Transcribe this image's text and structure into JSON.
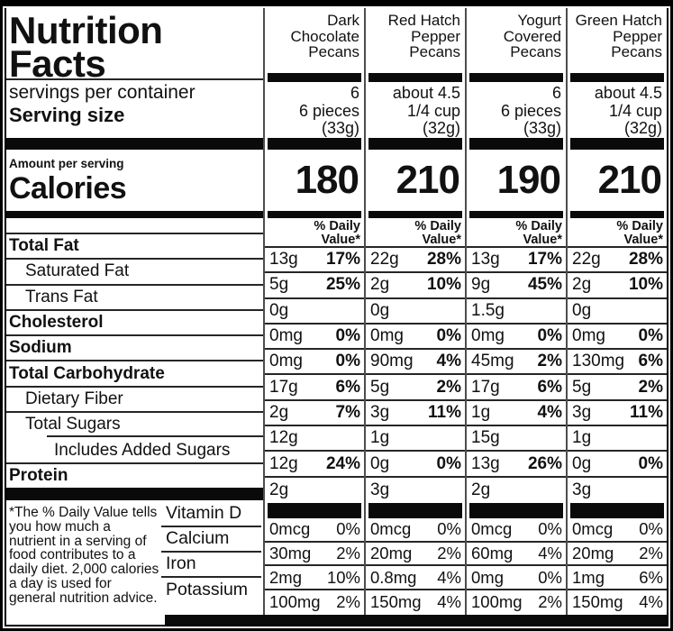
{
  "colors": {
    "ink": "#111111",
    "bar": "#0a0a0a",
    "rule": "#262626",
    "divider": "#4d4d4d"
  },
  "header": {
    "title": "Nutrition Facts",
    "servings_label": "servings per container",
    "serving_size_label": "Serving size",
    "amount_label": "Amount per serving",
    "calories_label": "Calories"
  },
  "dv_header_lines": [
    "% Daily",
    "Value*"
  ],
  "nutrients": [
    {
      "label": "Total Fat",
      "bold": true,
      "indent": 0
    },
    {
      "label": "Saturated Fat",
      "bold": false,
      "indent": 1
    },
    {
      "label": "Trans Fat",
      "bold": false,
      "indent": 1
    },
    {
      "label": "Cholesterol",
      "bold": true,
      "indent": 0
    },
    {
      "label": "Sodium",
      "bold": true,
      "indent": 0
    },
    {
      "label": "Total Carbohydrate",
      "bold": true,
      "indent": 0
    },
    {
      "label": "Dietary Fiber",
      "bold": false,
      "indent": 1
    },
    {
      "label": "Total Sugars",
      "bold": false,
      "indent": 1
    },
    {
      "label": "Includes Added Sugars",
      "bold": false,
      "indent": 2,
      "indented_rule": true
    },
    {
      "label": "Protein",
      "bold": true,
      "indent": 0
    }
  ],
  "vitamin_labels": [
    "Vitamin D",
    "Calcium",
    "Iron",
    "Potassium"
  ],
  "footnote": "*The % Daily Value tells you how much a nutrient in a serving of food contributes to a daily diet. 2,000 calories a day is used for general nutrition advice.",
  "products": [
    {
      "name_lines": [
        "Dark",
        "Chocolate",
        "Pecans"
      ],
      "servings": "6",
      "serving_size_lines": [
        "6 pieces",
        "(33g)"
      ],
      "calories": "180",
      "rows": [
        [
          "13g",
          "17%"
        ],
        [
          "5g",
          "25%"
        ],
        [
          "0g",
          ""
        ],
        [
          "0mg",
          "0%"
        ],
        [
          "0mg",
          "0%"
        ],
        [
          "17g",
          "6%"
        ],
        [
          "2g",
          "7%"
        ],
        [
          "12g",
          ""
        ],
        [
          "12g",
          "24%"
        ],
        [
          "2g",
          ""
        ]
      ],
      "vitamin_rows": [
        [
          "0mcg",
          "0%"
        ],
        [
          "30mg",
          "2%"
        ],
        [
          "2mg",
          "10%"
        ],
        [
          "100mg",
          "2%"
        ]
      ]
    },
    {
      "name_lines": [
        "Red Hatch",
        "Pepper",
        "Pecans"
      ],
      "servings": "about 4.5",
      "serving_size_lines": [
        "1/4 cup",
        "(32g)"
      ],
      "calories": "210",
      "rows": [
        [
          "22g",
          "28%"
        ],
        [
          "2g",
          "10%"
        ],
        [
          "0g",
          ""
        ],
        [
          "0mg",
          "0%"
        ],
        [
          "90mg",
          "4%"
        ],
        [
          "5g",
          "2%"
        ],
        [
          "3g",
          "11%"
        ],
        [
          "1g",
          ""
        ],
        [
          "0g",
          "0%"
        ],
        [
          "3g",
          ""
        ]
      ],
      "vitamin_rows": [
        [
          "0mcg",
          "0%"
        ],
        [
          "20mg",
          "2%"
        ],
        [
          "0.8mg",
          "4%"
        ],
        [
          "150mg",
          "4%"
        ]
      ]
    },
    {
      "name_lines": [
        "Yogurt",
        "Covered",
        "Pecans"
      ],
      "servings": "6",
      "serving_size_lines": [
        "6 pieces",
        "(33g)"
      ],
      "calories": "190",
      "rows": [
        [
          "13g",
          "17%"
        ],
        [
          "9g",
          "45%"
        ],
        [
          "1.5g",
          ""
        ],
        [
          "0mg",
          "0%"
        ],
        [
          "45mg",
          "2%"
        ],
        [
          "17g",
          "6%"
        ],
        [
          "1g",
          "4%"
        ],
        [
          "15g",
          ""
        ],
        [
          "13g",
          "26%"
        ],
        [
          "2g",
          ""
        ]
      ],
      "vitamin_rows": [
        [
          "0mcg",
          "0%"
        ],
        [
          "60mg",
          "4%"
        ],
        [
          "0mg",
          "0%"
        ],
        [
          "100mg",
          "2%"
        ]
      ]
    },
    {
      "name_lines": [
        "Green Hatch",
        "Pepper",
        "Pecans"
      ],
      "servings": "about 4.5",
      "serving_size_lines": [
        "1/4 cup",
        "(32g)"
      ],
      "calories": "210",
      "rows": [
        [
          "22g",
          "28%"
        ],
        [
          "2g",
          "10%"
        ],
        [
          "0g",
          ""
        ],
        [
          "0mg",
          "0%"
        ],
        [
          "130mg",
          "6%"
        ],
        [
          "5g",
          "2%"
        ],
        [
          "3g",
          "11%"
        ],
        [
          "1g",
          ""
        ],
        [
          "0g",
          "0%"
        ],
        [
          "3g",
          ""
        ]
      ],
      "vitamin_rows": [
        [
          "0mcg",
          "0%"
        ],
        [
          "20mg",
          "2%"
        ],
        [
          "1mg",
          "6%"
        ],
        [
          "150mg",
          "4%"
        ]
      ]
    }
  ]
}
